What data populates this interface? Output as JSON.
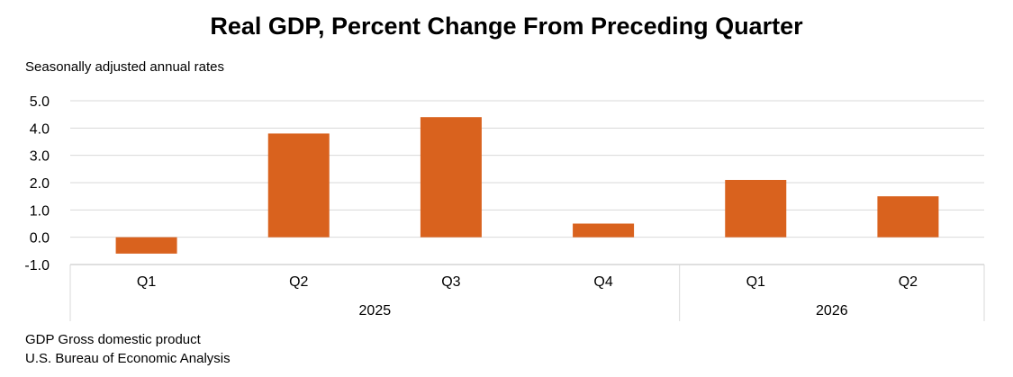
{
  "chart_data": {
    "type": "bar",
    "title": "Real GDP, Percent Change From Preceding Quarter",
    "subtitle": "Seasonally adjusted annual rates",
    "categories": [
      "Q1",
      "Q2",
      "Q3",
      "Q4",
      "Q1",
      "Q2"
    ],
    "groups": [
      {
        "label": "2025",
        "categories": [
          "Q1",
          "Q2",
          "Q3",
          "Q4"
        ]
      },
      {
        "label": "2026",
        "categories": [
          "Q1",
          "Q2"
        ]
      }
    ],
    "values": [
      -0.6,
      3.8,
      4.4,
      0.5,
      2.1,
      1.5
    ],
    "ylim": [
      -1.0,
      5.0
    ],
    "yticks": [
      "5.0",
      "4.0",
      "3.0",
      "2.0",
      "1.0",
      "0.0",
      "-1.0"
    ],
    "bar_color": "#D9621E",
    "grid": true
  },
  "footnotes": [
    "GDP Gross domestic product",
    "U.S. Bureau of Economic Analysis"
  ]
}
